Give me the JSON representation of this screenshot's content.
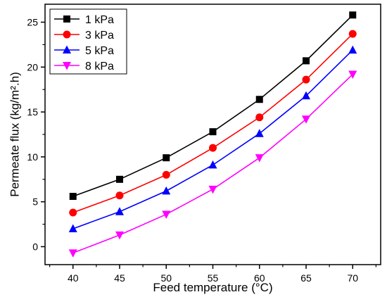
{
  "chart_data": {
    "type": "line",
    "xlabel": "Feed temperature (°C)",
    "ylabel": "Permeate flux (kg/m².h)",
    "x": [
      40,
      45,
      50,
      55,
      60,
      65,
      70
    ],
    "x_ticks": [
      "40",
      "45",
      "50",
      "55",
      "60",
      "65",
      "70"
    ],
    "y_ticks": [
      "0",
      "5",
      "10",
      "15",
      "20",
      "25"
    ],
    "xlim": [
      37,
      73
    ],
    "ylim": [
      -2,
      27
    ],
    "grid": false,
    "legend_position": "top-left",
    "series": [
      {
        "name": "1 kPa",
        "color": "#000000",
        "marker": "square",
        "values": [
          5.6,
          7.5,
          9.9,
          12.8,
          16.4,
          20.7,
          25.8
        ]
      },
      {
        "name": "3 kPa",
        "color": "#ff0000",
        "marker": "circle",
        "values": [
          3.8,
          5.7,
          8.0,
          11.0,
          14.4,
          18.6,
          23.7
        ]
      },
      {
        "name": "5 kPa",
        "color": "#0000ff",
        "marker": "triangle-up",
        "values": [
          2.0,
          3.9,
          6.2,
          9.1,
          12.6,
          16.8,
          21.9
        ]
      },
      {
        "name": "8 kPa",
        "color": "#ff00ff",
        "marker": "triangle-down",
        "values": [
          -0.7,
          1.3,
          3.6,
          6.4,
          9.9,
          14.2,
          19.2
        ]
      }
    ]
  }
}
